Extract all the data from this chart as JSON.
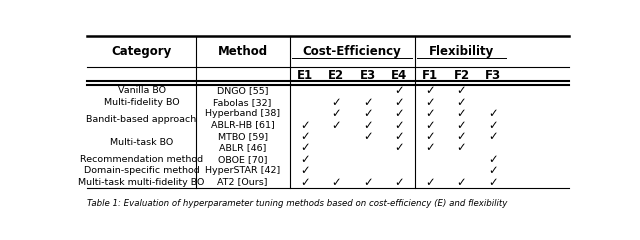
{
  "title_caption": "Table 1: Evaluation of hyperparameter tuning methods based on cost-efficiency (E) and flexibility",
  "rows": [
    [
      "Vanilla BO",
      "DNGO [55]",
      0,
      0,
      0,
      1,
      1,
      1,
      0
    ],
    [
      "Multi-fidelity BO",
      "Fabolas [32]",
      0,
      1,
      1,
      1,
      1,
      1,
      0
    ],
    [
      "Bandit-based approach",
      "Hyperband [38]",
      0,
      1,
      1,
      1,
      1,
      1,
      1
    ],
    [
      "Bandit-based approach",
      "ABLR-HB [61]",
      1,
      1,
      1,
      1,
      1,
      1,
      1
    ],
    [
      "Multi-task BO",
      "MTBO [59]",
      1,
      0,
      1,
      1,
      1,
      1,
      1
    ],
    [
      "Multi-task BO",
      "ABLR [46]",
      1,
      0,
      0,
      1,
      1,
      1,
      0
    ],
    [
      "Recommendation method",
      "OBOE [70]",
      1,
      0,
      0,
      0,
      0,
      0,
      1
    ],
    [
      "Domain-specific method",
      "HyperSTAR [42]",
      1,
      0,
      0,
      0,
      0,
      0,
      1
    ],
    [
      "Multi-task multi-fidelity BO",
      "AT2 [Ours]",
      1,
      1,
      1,
      1,
      1,
      1,
      1
    ]
  ],
  "category_spans": [
    [
      0,
      0,
      "Vanilla BO"
    ],
    [
      1,
      1,
      "Multi-fidelity BO"
    ],
    [
      2,
      3,
      "Bandit-based approach"
    ],
    [
      4,
      5,
      "Multi-task BO"
    ],
    [
      6,
      6,
      "Recommendation method"
    ],
    [
      7,
      7,
      "Domain-specific method"
    ],
    [
      8,
      8,
      "Multi-task multi-fidelity BO"
    ]
  ],
  "check": "✓",
  "bg_color": "#ffffff",
  "text_color": "#000000"
}
